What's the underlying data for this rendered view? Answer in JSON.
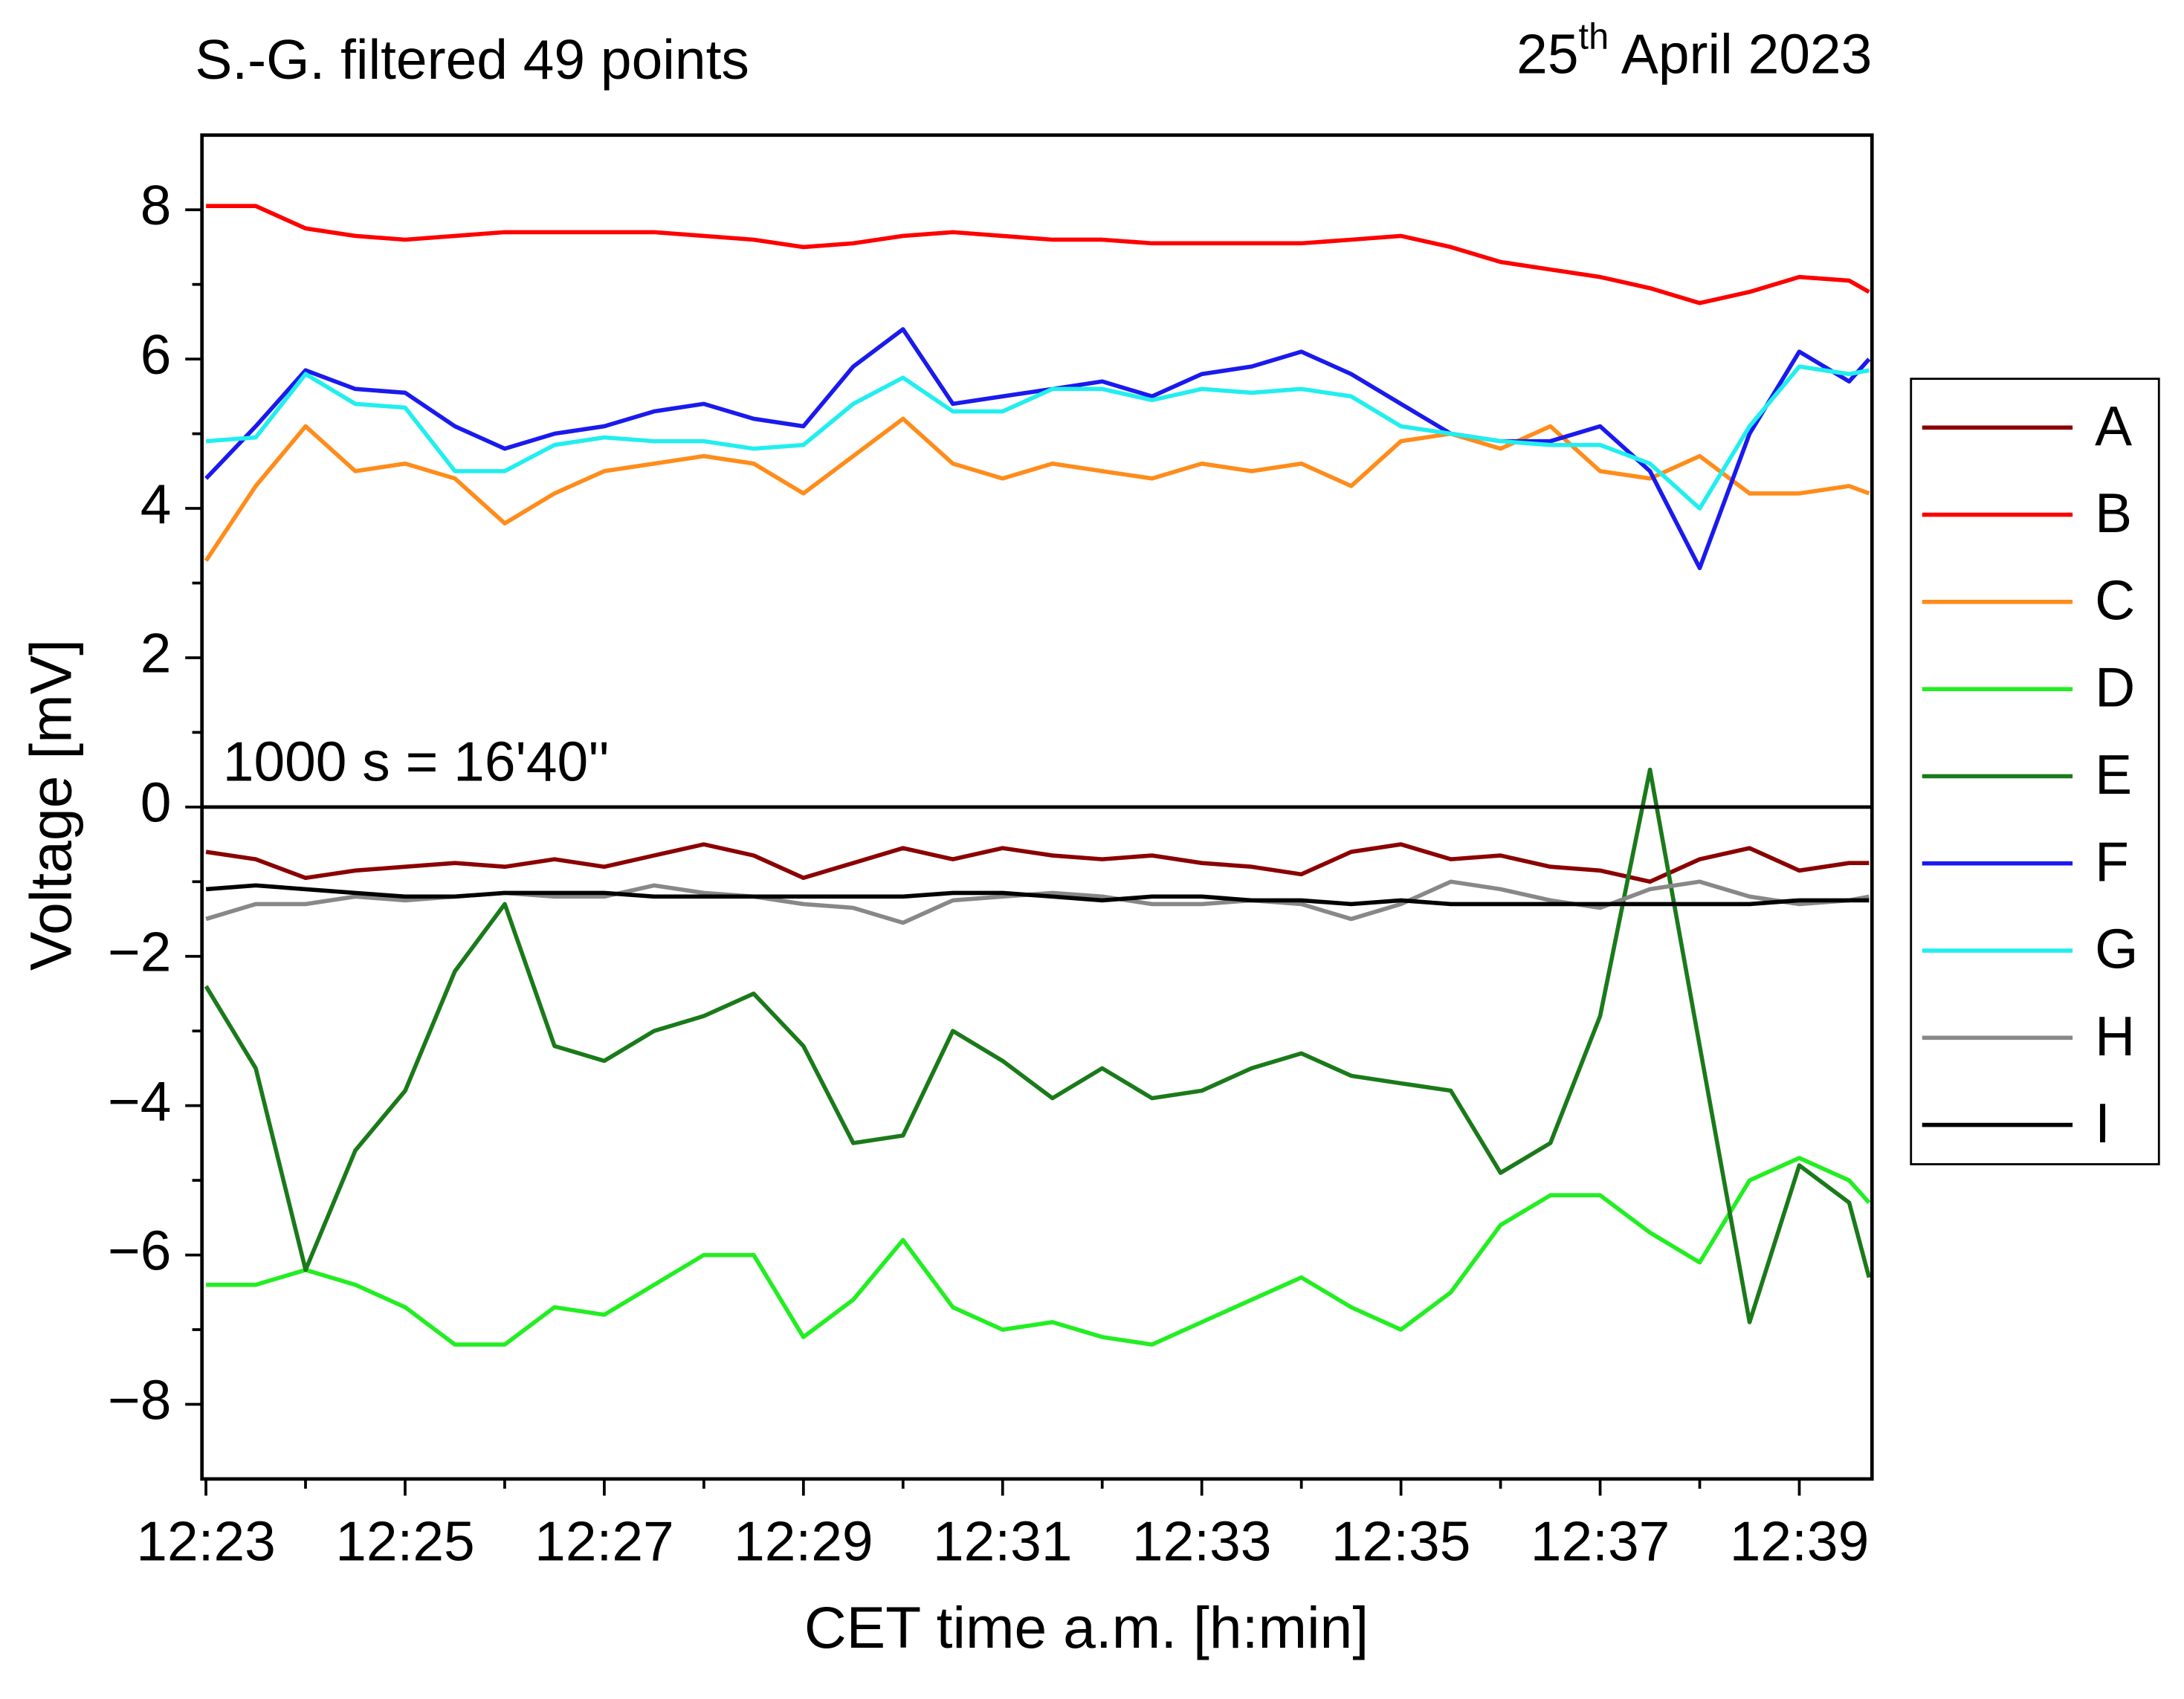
{
  "chart_data": {
    "type": "line",
    "title": "S.-G. filtered 49 points",
    "date": {
      "day": "25",
      "suffix": "th",
      "rest": " April 2023"
    },
    "annotation": "1000 s = 16'40''",
    "x_label": "CET time a.m. [h:min]",
    "y_label": "Voltage [mV]",
    "xlim": [
      22.96,
      39.73
    ],
    "xticks": [
      {
        "value": 23,
        "label": "12:23"
      },
      {
        "value": 25,
        "label": "12:25"
      },
      {
        "value": 27,
        "label": "12:27"
      },
      {
        "value": 29,
        "label": "12:29"
      },
      {
        "value": 31,
        "label": "12:31"
      },
      {
        "value": 33,
        "label": "12:33"
      },
      {
        "value": 35,
        "label": "12:35"
      },
      {
        "value": 37,
        "label": "12:37"
      },
      {
        "value": 39,
        "label": "12:39"
      }
    ],
    "ylim": [
      -9,
      9
    ],
    "yticks": [
      {
        "value": -8,
        "label": "−8"
      },
      {
        "value": -6,
        "label": "−6"
      },
      {
        "value": -4,
        "label": "−4"
      },
      {
        "value": -2,
        "label": "−2"
      },
      0,
      2,
      4,
      6,
      8
    ],
    "grid": false,
    "legend": "right",
    "x": [
      23,
      23.5,
      24,
      24.5,
      25,
      25.5,
      26,
      26.5,
      27,
      27.5,
      28,
      28.5,
      29,
      29.5,
      30,
      30.5,
      31,
      31.5,
      32,
      32.5,
      33,
      33.5,
      34,
      34.5,
      35,
      35.5,
      36,
      36.5,
      37,
      37.5,
      38,
      38.5,
      39,
      39.5,
      39.7
    ],
    "series": [
      {
        "name": "A",
        "color": "#8b0000",
        "values": [
          -0.6,
          -0.7,
          -0.95,
          -0.85,
          -0.8,
          -0.75,
          -0.8,
          -0.7,
          -0.8,
          -0.65,
          -0.5,
          -0.65,
          -0.95,
          -0.75,
          -0.55,
          -0.7,
          -0.55,
          -0.65,
          -0.7,
          -0.65,
          -0.75,
          -0.8,
          -0.9,
          -0.6,
          -0.5,
          -0.7,
          -0.65,
          -0.8,
          -0.85,
          -1.0,
          -0.7,
          -0.55,
          -0.85,
          -0.75,
          -0.75
        ]
      },
      {
        "name": "B",
        "color": "#ff0000",
        "values": [
          8.05,
          8.05,
          7.75,
          7.65,
          7.6,
          7.65,
          7.7,
          7.7,
          7.7,
          7.7,
          7.65,
          7.6,
          7.5,
          7.55,
          7.65,
          7.7,
          7.65,
          7.6,
          7.6,
          7.55,
          7.55,
          7.55,
          7.55,
          7.6,
          7.65,
          7.5,
          7.3,
          7.2,
          7.1,
          6.95,
          6.75,
          6.9,
          7.1,
          7.05,
          6.9
        ]
      },
      {
        "name": "C",
        "color": "#ff8c1a",
        "values": [
          3.3,
          4.3,
          5.1,
          4.5,
          4.6,
          4.4,
          3.8,
          4.2,
          4.5,
          4.6,
          4.7,
          4.6,
          4.2,
          4.7,
          5.2,
          4.6,
          4.4,
          4.6,
          4.5,
          4.4,
          4.6,
          4.5,
          4.6,
          4.3,
          4.9,
          5.0,
          4.8,
          5.1,
          4.5,
          4.4,
          4.7,
          4.2,
          4.2,
          4.3,
          4.2
        ]
      },
      {
        "name": "D",
        "color": "#22ee22",
        "values": [
          -6.4,
          -6.4,
          -6.2,
          -6.4,
          -6.7,
          -7.2,
          -7.2,
          -6.7,
          -6.8,
          -6.4,
          -6.0,
          -6.0,
          -7.1,
          -6.6,
          -5.8,
          -6.7,
          -7.0,
          -6.9,
          -7.1,
          -7.2,
          -6.9,
          -6.6,
          -6.3,
          -6.7,
          -7.0,
          -6.5,
          -5.6,
          -5.2,
          -5.2,
          -5.7,
          -6.1,
          -5.0,
          -4.7,
          -5.0,
          -5.3
        ]
      },
      {
        "name": "E",
        "color": "#1a7a1a",
        "values": [
          -2.4,
          -3.5,
          -6.2,
          -4.6,
          -3.8,
          -2.2,
          -1.3,
          -3.2,
          -3.4,
          -3.0,
          -2.8,
          -2.5,
          -3.2,
          -4.5,
          -4.4,
          -3.0,
          -3.4,
          -3.9,
          -3.5,
          -3.9,
          -3.8,
          -3.5,
          -3.3,
          -3.6,
          -3.7,
          -3.8,
          -4.9,
          -4.5,
          -2.8,
          0.5,
          -3.2,
          -6.9,
          -4.8,
          -5.3,
          -6.3
        ]
      },
      {
        "name": "F",
        "color": "#1a1aee",
        "values": [
          4.4,
          5.1,
          5.85,
          5.6,
          5.55,
          5.1,
          4.8,
          5.0,
          5.1,
          5.3,
          5.4,
          5.2,
          5.1,
          5.9,
          6.4,
          5.4,
          5.5,
          5.6,
          5.7,
          5.5,
          5.8,
          5.9,
          6.1,
          5.8,
          5.4,
          5.0,
          4.9,
          4.9,
          5.1,
          4.5,
          3.2,
          5.0,
          6.1,
          5.7,
          6.0
        ]
      },
      {
        "name": "G",
        "color": "#22eeee",
        "values": [
          4.9,
          4.95,
          5.8,
          5.4,
          5.35,
          4.5,
          4.5,
          4.85,
          4.95,
          4.9,
          4.9,
          4.8,
          4.85,
          5.4,
          5.75,
          5.3,
          5.3,
          5.6,
          5.6,
          5.45,
          5.6,
          5.55,
          5.6,
          5.5,
          5.1,
          5.0,
          4.9,
          4.85,
          4.85,
          4.6,
          4.0,
          5.1,
          5.9,
          5.8,
          5.85
        ]
      },
      {
        "name": "H",
        "color": "#888888",
        "values": [
          -1.5,
          -1.3,
          -1.3,
          -1.2,
          -1.25,
          -1.2,
          -1.15,
          -1.2,
          -1.2,
          -1.05,
          -1.15,
          -1.2,
          -1.3,
          -1.35,
          -1.55,
          -1.25,
          -1.2,
          -1.15,
          -1.2,
          -1.3,
          -1.3,
          -1.25,
          -1.3,
          -1.5,
          -1.3,
          -1.0,
          -1.1,
          -1.25,
          -1.35,
          -1.1,
          -1.0,
          -1.2,
          -1.3,
          -1.25,
          -1.2
        ]
      },
      {
        "name": "I",
        "color": "#000000",
        "values": [
          -1.1,
          -1.05,
          -1.1,
          -1.15,
          -1.2,
          -1.2,
          -1.15,
          -1.15,
          -1.15,
          -1.2,
          -1.2,
          -1.2,
          -1.2,
          -1.2,
          -1.2,
          -1.15,
          -1.15,
          -1.2,
          -1.25,
          -1.2,
          -1.2,
          -1.25,
          -1.25,
          -1.3,
          -1.25,
          -1.3,
          -1.3,
          -1.3,
          -1.3,
          -1.3,
          -1.3,
          -1.3,
          -1.25,
          -1.25,
          -1.25
        ]
      }
    ]
  }
}
